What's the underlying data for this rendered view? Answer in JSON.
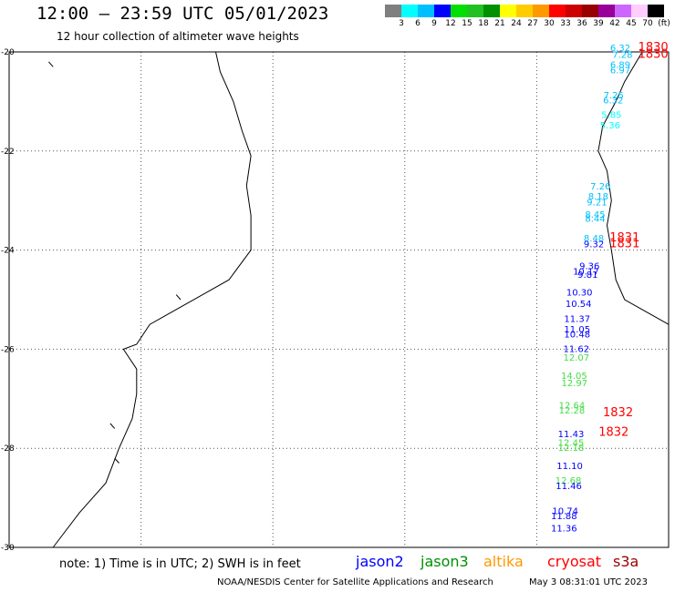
{
  "header": {
    "title": "12:00 – 23:59 UTC 05/01/2023",
    "subtitle": "12 hour collection of altimeter wave heights"
  },
  "colorbar": {
    "colors": [
      "#7f7f7f",
      "#00ffff",
      "#00bfff",
      "#0000ff",
      "#00e000",
      "#22c022",
      "#009000",
      "#ffff00",
      "#ffcc00",
      "#ff9900",
      "#ff0000",
      "#cc0000",
      "#990000",
      "#990099",
      "#cc66ff",
      "#ffccff",
      "#000000"
    ],
    "labels": [
      "3",
      "6",
      "9",
      "12",
      "15",
      "18",
      "21",
      "24",
      "27",
      "30",
      "33",
      "36",
      "39",
      "42",
      "45",
      "70",
      "(ft)"
    ]
  },
  "map": {
    "lon_range": [
      30,
      45
    ],
    "lat_range": [
      -30,
      -20
    ],
    "lon_ticks": [
      "30",
      "33",
      "36",
      "39",
      "42",
      "45"
    ],
    "lat_ticks": [
      "-30",
      "-28",
      "-26",
      "-24",
      "-22",
      "-20"
    ],
    "lon_tick_values": [
      30,
      33,
      36,
      39,
      42,
      45
    ],
    "lat_tick_values": [
      -30,
      -28,
      -26,
      -24,
      -22,
      -20
    ],
    "grid": true
  },
  "observations": [
    {
      "text": "6.32",
      "lon": 43.9,
      "lat": -19.98,
      "color": "#00bfff"
    },
    {
      "text": "7.28",
      "lon": 43.95,
      "lat": -20.12,
      "color": "#00bfff"
    },
    {
      "text": "6.89",
      "lon": 43.9,
      "lat": -20.32,
      "color": "#00bfff"
    },
    {
      "text": "6.97",
      "lon": 43.9,
      "lat": -20.43,
      "color": "#00bfff"
    },
    {
      "text": "7.25",
      "lon": 43.75,
      "lat": -20.94,
      "color": "#00bfff"
    },
    {
      "text": "6.32",
      "lon": 43.74,
      "lat": -21.04,
      "color": "#00bfff"
    },
    {
      "text": "5.85",
      "lon": 43.7,
      "lat": -21.33,
      "color": "#00ffff"
    },
    {
      "text": "5.36",
      "lon": 43.67,
      "lat": -21.54,
      "color": "#00ffff"
    },
    {
      "text": "7.26",
      "lon": 43.45,
      "lat": -22.78,
      "color": "#00bfff"
    },
    {
      "text": "8.18",
      "lon": 43.4,
      "lat": -22.98,
      "color": "#00bfff"
    },
    {
      "text": "9.21",
      "lon": 43.37,
      "lat": -23.1,
      "color": "#00bfff"
    },
    {
      "text": "8.45",
      "lon": 43.33,
      "lat": -23.35,
      "color": "#00bfff"
    },
    {
      "text": "8.44",
      "lon": 43.33,
      "lat": -23.43,
      "color": "#00bfff"
    },
    {
      "text": "8.48",
      "lon": 43.3,
      "lat": -23.82,
      "color": "#00bfff"
    },
    {
      "text": "9.32",
      "lon": 43.3,
      "lat": -23.94,
      "color": "#0000ff"
    },
    {
      "text": "9.36",
      "lon": 43.2,
      "lat": -24.38,
      "color": "#0000ff"
    },
    {
      "text": "10.17",
      "lon": 43.12,
      "lat": -24.49,
      "color": "#0000ff"
    },
    {
      "text": "9.81",
      "lon": 43.16,
      "lat": -24.56,
      "color": "#0000ff"
    },
    {
      "text": "10.30",
      "lon": 42.97,
      "lat": -24.92,
      "color": "#0000ff"
    },
    {
      "text": "10.54",
      "lon": 42.95,
      "lat": -25.15,
      "color": "#0000ff"
    },
    {
      "text": "11.37",
      "lon": 42.92,
      "lat": -25.45,
      "color": "#0000ff"
    },
    {
      "text": "11.05",
      "lon": 42.92,
      "lat": -25.66,
      "color": "#0000ff"
    },
    {
      "text": "10.48",
      "lon": 42.92,
      "lat": -25.76,
      "color": "#0000ff"
    },
    {
      "text": "11.62",
      "lon": 42.9,
      "lat": -26.06,
      "color": "#0000ff"
    },
    {
      "text": "12.07",
      "lon": 42.9,
      "lat": -26.23,
      "color": "#44dd44"
    },
    {
      "text": "14.05",
      "lon": 42.85,
      "lat": -26.6,
      "color": "#44dd44"
    },
    {
      "text": "12.97",
      "lon": 42.86,
      "lat": -26.75,
      "color": "#44dd44"
    },
    {
      "text": "12.64",
      "lon": 42.8,
      "lat": -27.2,
      "color": "#44dd44"
    },
    {
      "text": "12.28",
      "lon": 42.8,
      "lat": -27.3,
      "color": "#44dd44"
    },
    {
      "text": "11.43",
      "lon": 42.78,
      "lat": -27.78,
      "color": "#0000ff"
    },
    {
      "text": "12.45",
      "lon": 42.78,
      "lat": -27.95,
      "color": "#44dd44"
    },
    {
      "text": "12.18",
      "lon": 42.78,
      "lat": -28.05,
      "color": "#44dd44"
    },
    {
      "text": "11.10",
      "lon": 42.75,
      "lat": -28.42,
      "color": "#0000ff"
    },
    {
      "text": "12.68",
      "lon": 42.72,
      "lat": -28.71,
      "color": "#44dd44"
    },
    {
      "text": "11.46",
      "lon": 42.73,
      "lat": -28.82,
      "color": "#0000ff"
    },
    {
      "text": "10.74",
      "lon": 42.65,
      "lat": -29.33,
      "color": "#0000ff"
    },
    {
      "text": "11.88",
      "lon": 42.62,
      "lat": -29.43,
      "color": "#0000ff"
    },
    {
      "text": "11.36",
      "lon": 42.62,
      "lat": -29.68,
      "color": "#0000ff"
    }
  ],
  "pass_labels": [
    {
      "text": "1830",
      "lon": 44.65,
      "lat": -19.98,
      "color": "#ff0000"
    },
    {
      "text": "1830",
      "lon": 44.65,
      "lat": -20.12,
      "color": "#ff0000"
    },
    {
      "text": "1831",
      "lon": 44.0,
      "lat": -23.82,
      "color": "#ff0000"
    },
    {
      "text": "1831",
      "lon": 44.0,
      "lat": -23.94,
      "color": "#ff0000"
    },
    {
      "text": "1832",
      "lon": 43.85,
      "lat": -27.35,
      "color": "#ff0000"
    },
    {
      "text": "1832",
      "lon": 43.75,
      "lat": -27.75,
      "color": "#ff0000"
    }
  ],
  "coastlines": {
    "mozambique": [
      [
        31.0,
        -30.0
      ],
      [
        31.6,
        -29.3
      ],
      [
        32.2,
        -28.7
      ],
      [
        32.5,
        -28.0
      ],
      [
        32.8,
        -27.4
      ],
      [
        32.9,
        -26.9
      ],
      [
        32.9,
        -26.4
      ],
      [
        32.6,
        -26.0
      ],
      [
        32.9,
        -25.9
      ],
      [
        33.2,
        -25.5
      ],
      [
        33.6,
        -25.3
      ],
      [
        34.4,
        -24.9
      ],
      [
        35.0,
        -24.6
      ],
      [
        35.5,
        -24.0
      ],
      [
        35.5,
        -23.3
      ],
      [
        35.4,
        -22.7
      ],
      [
        35.5,
        -22.1
      ],
      [
        35.3,
        -21.6
      ],
      [
        35.1,
        -21.0
      ],
      [
        34.8,
        -20.4
      ],
      [
        34.7,
        -20.0
      ]
    ],
    "madagascar": [
      [
        45.0,
        -25.5
      ],
      [
        44.4,
        -25.2
      ],
      [
        44.0,
        -25.0
      ],
      [
        43.8,
        -24.6
      ],
      [
        43.7,
        -24.0
      ],
      [
        43.6,
        -23.5
      ],
      [
        43.7,
        -23.0
      ],
      [
        43.6,
        -22.4
      ],
      [
        43.4,
        -22.0
      ],
      [
        43.5,
        -21.5
      ],
      [
        43.8,
        -21.0
      ],
      [
        44.0,
        -20.6
      ],
      [
        44.4,
        -20.0
      ]
    ],
    "islands": [
      [
        [
          30.9,
          -20.2
        ],
        [
          31.0,
          -20.3
        ]
      ],
      [
        [
          32.3,
          -27.5
        ],
        [
          32.4,
          -27.6
        ]
      ],
      [
        [
          32.4,
          -28.2
        ],
        [
          32.5,
          -28.3
        ]
      ],
      [
        [
          33.8,
          -24.9
        ],
        [
          33.9,
          -25.0
        ]
      ]
    ]
  },
  "footer": {
    "note": "note:  1) Time is in UTC; 2) SWH is in feet",
    "satellites": [
      {
        "name": "jason2",
        "color": "#0000ff"
      },
      {
        "name": "jason3",
        "color": "#009000"
      },
      {
        "name": "altika",
        "color": "#ff9900"
      },
      {
        "name": "cryosat",
        "color": "#ff0000"
      },
      {
        "name": "s3a",
        "color": "#990000"
      }
    ],
    "credit": "NOAA/NESDIS Center for Satellite Applications and Research",
    "timestamp": "May  3 08:31:01 UTC 2023"
  }
}
